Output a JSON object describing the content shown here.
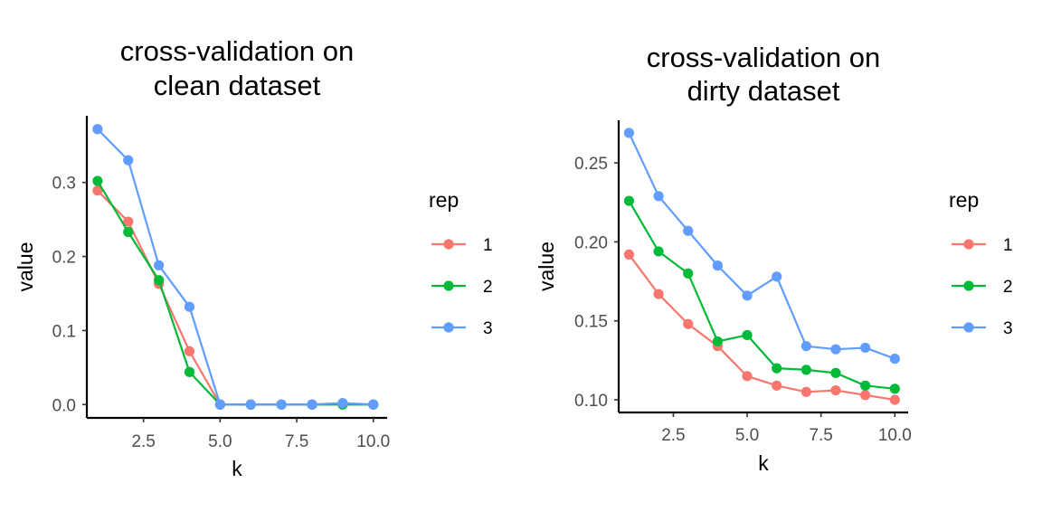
{
  "chart_data": [
    {
      "type": "line",
      "title": [
        "cross-validation on",
        "clean dataset"
      ],
      "xlabel": "k",
      "ylabel": "value",
      "x": [
        1,
        2,
        3,
        4,
        5,
        6,
        7,
        8,
        9,
        10
      ],
      "xlim": [
        0.65,
        10.45
      ],
      "ylim": [
        -0.018,
        0.39
      ],
      "xticks": [
        2.5,
        5.0,
        7.5,
        10.0
      ],
      "xtick_labels": [
        "2.5",
        "5.0",
        "7.5",
        "10.0"
      ],
      "yticks": [
        0.0,
        0.1,
        0.2,
        0.3
      ],
      "ytick_labels": [
        "0.0",
        "0.1",
        "0.2",
        "0.3"
      ],
      "legend_title": "rep",
      "legend_position": "right",
      "grid": false,
      "series": [
        {
          "name": "1",
          "color": "#F8766D",
          "values": [
            0.289,
            0.247,
            0.163,
            0.072,
            0.0,
            0.0,
            0.0,
            0.0,
            0.001,
            0.0
          ]
        },
        {
          "name": "2",
          "color": "#00BA38",
          "values": [
            0.302,
            0.233,
            0.168,
            0.044,
            0.0,
            0.0,
            0.0,
            0.0,
            0.0,
            0.0
          ]
        },
        {
          "name": "3",
          "color": "#619CFF",
          "values": [
            0.372,
            0.33,
            0.188,
            0.132,
            0.0,
            0.0,
            0.0,
            0.0,
            0.002,
            0.0
          ]
        }
      ]
    },
    {
      "type": "line",
      "title": [
        "cross-validation on",
        "dirty dataset"
      ],
      "xlabel": "k",
      "ylabel": "value",
      "x": [
        1,
        2,
        3,
        4,
        5,
        6,
        7,
        8,
        9,
        10
      ],
      "xlim": [
        0.65,
        10.45
      ],
      "ylim": [
        0.092,
        0.277
      ],
      "xticks": [
        2.5,
        5.0,
        7.5,
        10.0
      ],
      "xtick_labels": [
        "2.5",
        "5.0",
        "7.5",
        "10.0"
      ],
      "yticks": [
        0.1,
        0.15,
        0.2,
        0.25
      ],
      "ytick_labels": [
        "0.10",
        "0.15",
        "0.20",
        "0.25"
      ],
      "legend_title": "rep",
      "legend_position": "right",
      "grid": false,
      "series": [
        {
          "name": "1",
          "color": "#F8766D",
          "values": [
            0.192,
            0.167,
            0.148,
            0.134,
            0.115,
            0.109,
            0.105,
            0.106,
            0.103,
            0.1
          ]
        },
        {
          "name": "2",
          "color": "#00BA38",
          "values": [
            0.226,
            0.194,
            0.18,
            0.137,
            0.141,
            0.12,
            0.119,
            0.117,
            0.109,
            0.107
          ]
        },
        {
          "name": "3",
          "color": "#619CFF",
          "values": [
            0.269,
            0.229,
            0.207,
            0.185,
            0.166,
            0.178,
            0.134,
            0.132,
            0.133,
            0.126
          ]
        }
      ]
    }
  ]
}
